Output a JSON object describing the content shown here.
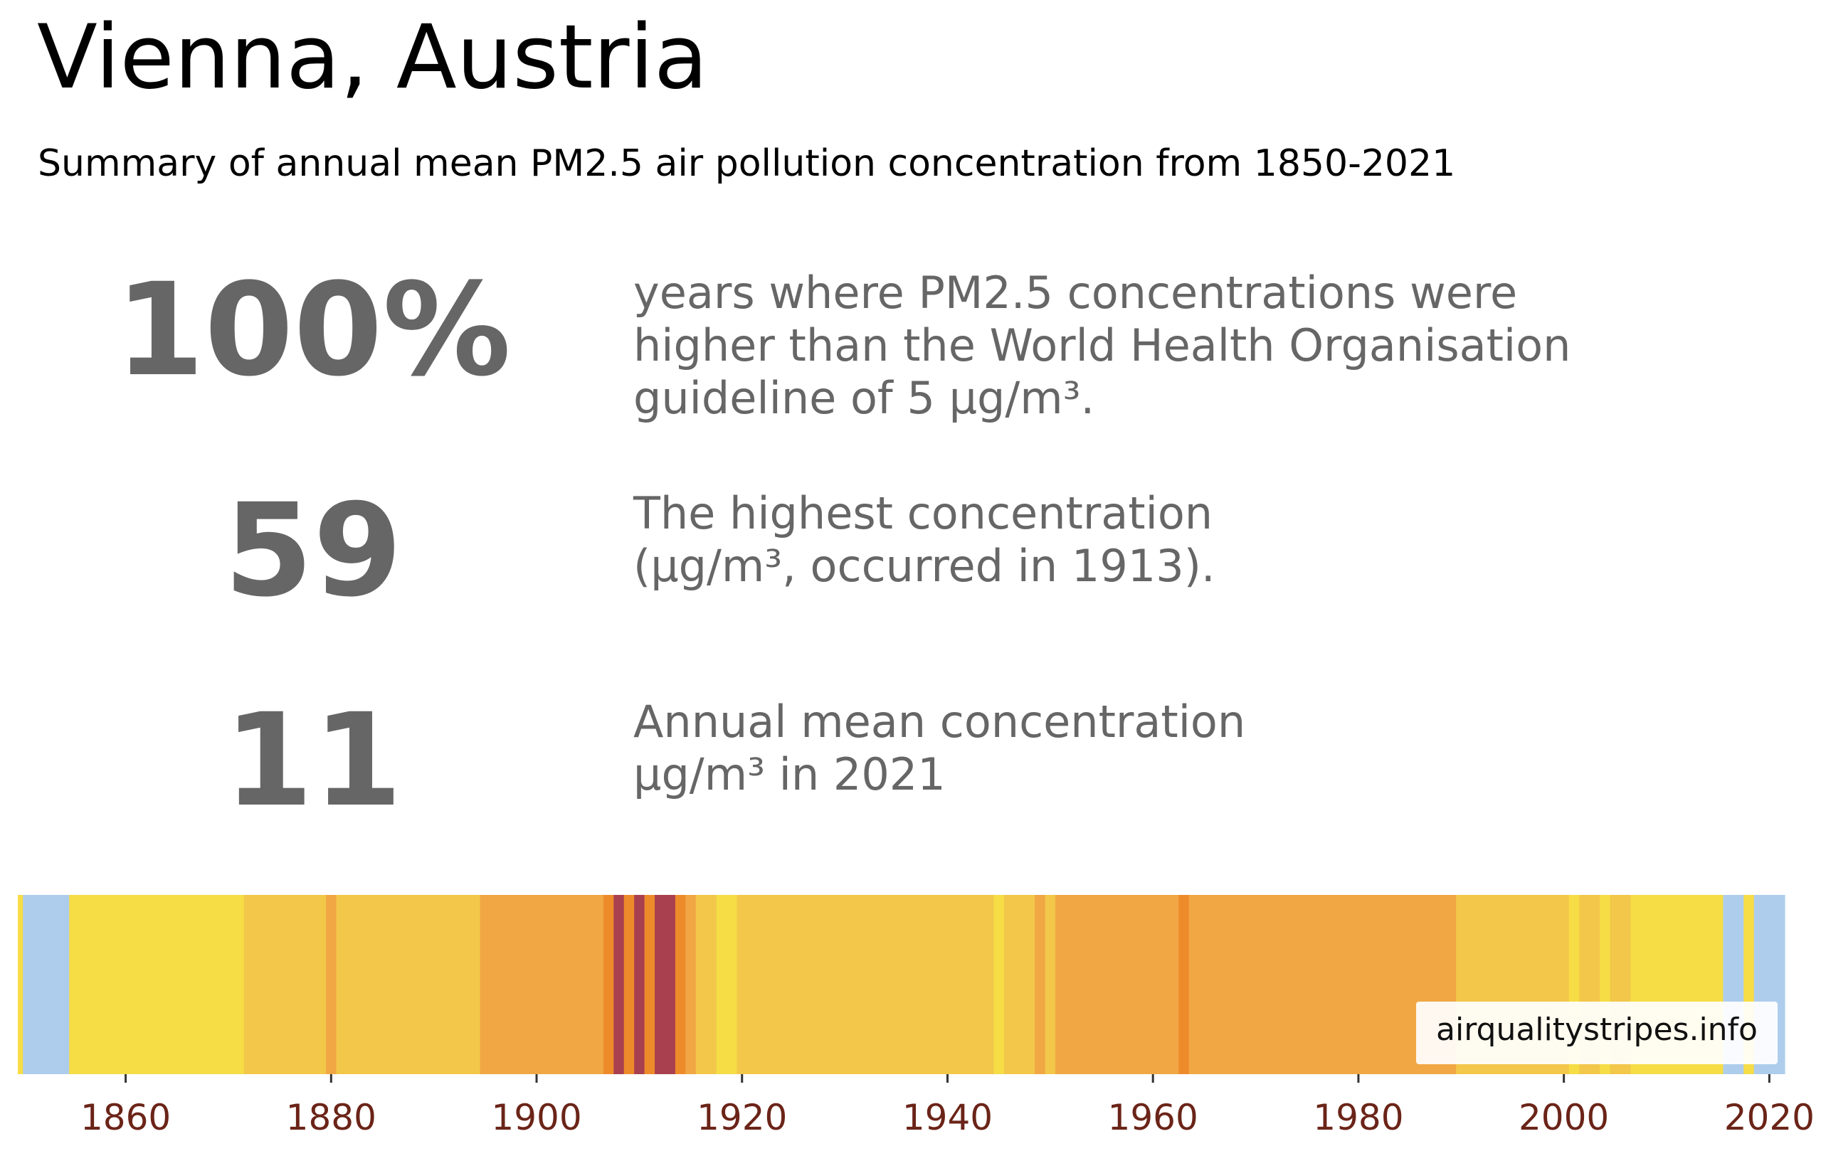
{
  "header": {
    "title": "Vienna, Austria",
    "subtitle": "Summary of annual mean PM2.5 air pollution concentration from 1850-2021"
  },
  "stats": [
    {
      "value": "100%",
      "lines": [
        "years where PM2.5 concentrations were",
        "higher than the World Health Organisation",
        "guideline of 5 μg/m³."
      ]
    },
    {
      "value": "59",
      "lines": [
        "The highest concentration",
        "(μg/m³, occurred in 1913)."
      ]
    },
    {
      "value": "11",
      "lines": [
        "Annual mean concentration",
        "μg/m³ in 2021"
      ]
    }
  ],
  "source_badge": "airqualitystripes.info",
  "colors": {
    "text_gray": "#666666",
    "tick_label": "#6b2418",
    "light_blue": "#aecdec",
    "yellow": "#f6dd46",
    "yellow_orange": "#f2c74a",
    "orange": "#f0a744",
    "dark_orange": "#ed8b2b",
    "red": "#c0443e",
    "dark_red": "#a9404f"
  },
  "chart_data": {
    "type": "heatmap",
    "x_range": [
      1849.5,
      2021.5
    ],
    "xticks": [
      "1860",
      "1880",
      "1900",
      "1920",
      "1940",
      "1960",
      "1980",
      "2000",
      "2020"
    ],
    "stripes": [
      {
        "from": 1849.5,
        "to": 1850.0,
        "color": "yellow"
      },
      {
        "from": 1850.0,
        "to": 1854.5,
        "color": "light_blue"
      },
      {
        "from": 1854.5,
        "to": 1871.5,
        "color": "yellow"
      },
      {
        "from": 1871.5,
        "to": 1879.5,
        "color": "yellow_orange"
      },
      {
        "from": 1879.5,
        "to": 1880.5,
        "color": "orange"
      },
      {
        "from": 1880.5,
        "to": 1894.5,
        "color": "yellow_orange"
      },
      {
        "from": 1894.5,
        "to": 1906.5,
        "color": "orange"
      },
      {
        "from": 1906.5,
        "to": 1907.5,
        "color": "dark_orange"
      },
      {
        "from": 1907.5,
        "to": 1908.5,
        "color": "dark_red"
      },
      {
        "from": 1908.5,
        "to": 1909.5,
        "color": "dark_orange"
      },
      {
        "from": 1909.5,
        "to": 1910.5,
        "color": "dark_red"
      },
      {
        "from": 1910.5,
        "to": 1911.5,
        "color": "dark_orange"
      },
      {
        "from": 1911.5,
        "to": 1913.5,
        "color": "dark_red"
      },
      {
        "from": 1913.5,
        "to": 1914.5,
        "color": "dark_orange"
      },
      {
        "from": 1914.5,
        "to": 1915.5,
        "color": "orange"
      },
      {
        "from": 1915.5,
        "to": 1917.5,
        "color": "yellow_orange"
      },
      {
        "from": 1917.5,
        "to": 1919.5,
        "color": "yellow"
      },
      {
        "from": 1919.5,
        "to": 1944.5,
        "color": "yellow_orange"
      },
      {
        "from": 1944.5,
        "to": 1945.5,
        "color": "yellow"
      },
      {
        "from": 1945.5,
        "to": 1948.5,
        "color": "yellow_orange"
      },
      {
        "from": 1948.5,
        "to": 1949.5,
        "color": "orange"
      },
      {
        "from": 1949.5,
        "to": 1950.5,
        "color": "yellow_orange"
      },
      {
        "from": 1950.5,
        "to": 1962.5,
        "color": "orange"
      },
      {
        "from": 1962.5,
        "to": 1963.5,
        "color": "dark_orange"
      },
      {
        "from": 1963.5,
        "to": 1989.5,
        "color": "orange"
      },
      {
        "from": 1989.5,
        "to": 2000.5,
        "color": "yellow_orange"
      },
      {
        "from": 2000.5,
        "to": 2001.5,
        "color": "yellow"
      },
      {
        "from": 2001.5,
        "to": 2003.5,
        "color": "yellow_orange"
      },
      {
        "from": 2003.5,
        "to": 2004.5,
        "color": "yellow"
      },
      {
        "from": 2004.5,
        "to": 2006.5,
        "color": "yellow_orange"
      },
      {
        "from": 2006.5,
        "to": 2015.5,
        "color": "yellow"
      },
      {
        "from": 2015.5,
        "to": 2017.5,
        "color": "light_blue"
      },
      {
        "from": 2017.5,
        "to": 2018.5,
        "color": "yellow"
      },
      {
        "from": 2018.5,
        "to": 2021.5,
        "color": "light_blue"
      }
    ]
  }
}
